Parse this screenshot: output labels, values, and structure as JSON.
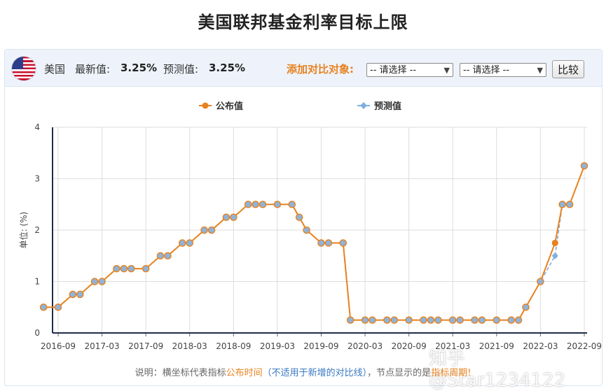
{
  "title": "美国联邦基金利率目标上限",
  "toolbar": {
    "country": "美国",
    "latest_label": "最新值:",
    "latest_value": "3.25%",
    "forecast_label": "预测值:",
    "forecast_value": "3.25%",
    "compare_label": "添加对比对象:",
    "select1": "-- 请选择 --",
    "select2": "-- 请选择 --",
    "compare_button": "比较"
  },
  "colors": {
    "published": "#e8821e",
    "forecast": "#7fb0e0",
    "axis": "#1f2d4a",
    "grid": "#dddddd"
  },
  "chart_data": {
    "type": "line",
    "ylabel": "单位: (%)",
    "ylim": [
      0,
      4
    ],
    "yticks": [
      0,
      1,
      2,
      3,
      4
    ],
    "legend": {
      "position": "top",
      "published": "公布值",
      "forecast": "预测值"
    },
    "xtick_labels": [
      "2016-09",
      "2017-03",
      "2017-09",
      "2018-03",
      "2018-09",
      "2019-03",
      "2019-09",
      "2020-03",
      "2020-09",
      "2021-03",
      "2021-09",
      "2022-03",
      "2022-09"
    ],
    "x": [
      "2016-07",
      "2016-09",
      "2016-11",
      "2016-12",
      "2017-02",
      "2017-03",
      "2017-05",
      "2017-06",
      "2017-07",
      "2017-09",
      "2017-11",
      "2017-12",
      "2018-02",
      "2018-03",
      "2018-05",
      "2018-06",
      "2018-08",
      "2018-09",
      "2018-11",
      "2018-12",
      "2019-01",
      "2019-03",
      "2019-05",
      "2019-06",
      "2019-07",
      "2019-09",
      "2019-10",
      "2019-12",
      "2020-01",
      "2020-03",
      "2020-04",
      "2020-06",
      "2020-07",
      "2020-09",
      "2020-11",
      "2020-12",
      "2021-01",
      "2021-03",
      "2021-04",
      "2021-06",
      "2021-07",
      "2021-09",
      "2021-11",
      "2021-12",
      "2022-01",
      "2022-03",
      "2022-05",
      "2022-06",
      "2022-07",
      "2022-09"
    ],
    "series": [
      {
        "name": "公布值",
        "values": [
          0.5,
          0.5,
          0.75,
          0.75,
          1,
          1,
          1.25,
          1.25,
          1.25,
          1.25,
          1.5,
          1.5,
          1.75,
          1.75,
          2,
          2,
          2.25,
          2.25,
          2.5,
          2.5,
          2.5,
          2.5,
          2.5,
          2.25,
          2,
          1.75,
          1.75,
          1.75,
          0.25,
          0.25,
          0.25,
          0.25,
          0.25,
          0.25,
          0.25,
          0.25,
          0.25,
          0.25,
          0.25,
          0.25,
          0.25,
          0.25,
          0.25,
          0.25,
          0.5,
          1,
          1.75,
          2.5,
          2.5,
          3.25
        ]
      },
      {
        "name": "预测值",
        "values": [
          0.5,
          0.5,
          0.75,
          0.75,
          1,
          1,
          1.25,
          1.25,
          1.25,
          1.25,
          1.5,
          1.5,
          1.75,
          1.75,
          2,
          2,
          2.25,
          2.25,
          2.5,
          2.5,
          2.5,
          2.5,
          2.5,
          2.25,
          2,
          1.75,
          1.75,
          1.75,
          0.25,
          0.25,
          0.25,
          0.25,
          0.25,
          0.25,
          0.25,
          0.25,
          0.25,
          0.25,
          0.25,
          0.25,
          0.25,
          0.25,
          0.25,
          0.25,
          0.5,
          1,
          1.5,
          2.5,
          2.5,
          3.25
        ]
      }
    ]
  },
  "note": {
    "prefix": "说明：横坐标代表指标",
    "orange1": "公布时间",
    "paren_open": "（",
    "blue": "不适用于新增的对比线",
    "paren_close": "）",
    "middle": "，节点显示的是",
    "orange2": "指标周期!"
  },
  "watermark": "知乎 @Star1234122"
}
